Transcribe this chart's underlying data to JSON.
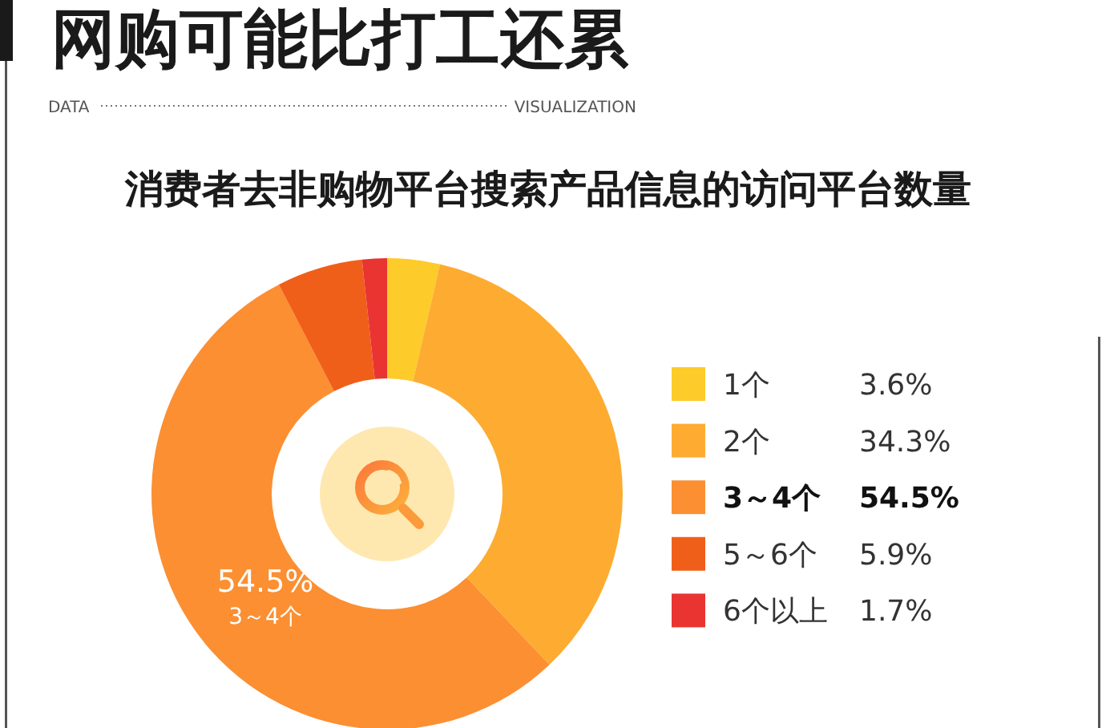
{
  "chart_data": {
    "type": "donut",
    "title": "网购可能比打工还累",
    "subtitle": "消费者去非购物平台搜索产品信息的访问平台数量",
    "annotations": [
      "DATA",
      "VISUALIZATION"
    ],
    "categories": [
      "1个",
      "2个",
      "3～4个",
      "5～6个",
      "6个以上"
    ],
    "values": [
      3.6,
      34.3,
      54.5,
      5.9,
      1.7
    ],
    "colors": [
      "#fdcb2a",
      "#fdac31",
      "#fb8f32",
      "#f05f1a",
      "#e93432"
    ],
    "value_labels": [
      "3.6%",
      "34.3%",
      "54.5%",
      "5.9%",
      "1.7%"
    ],
    "legend": "right"
  }
}
